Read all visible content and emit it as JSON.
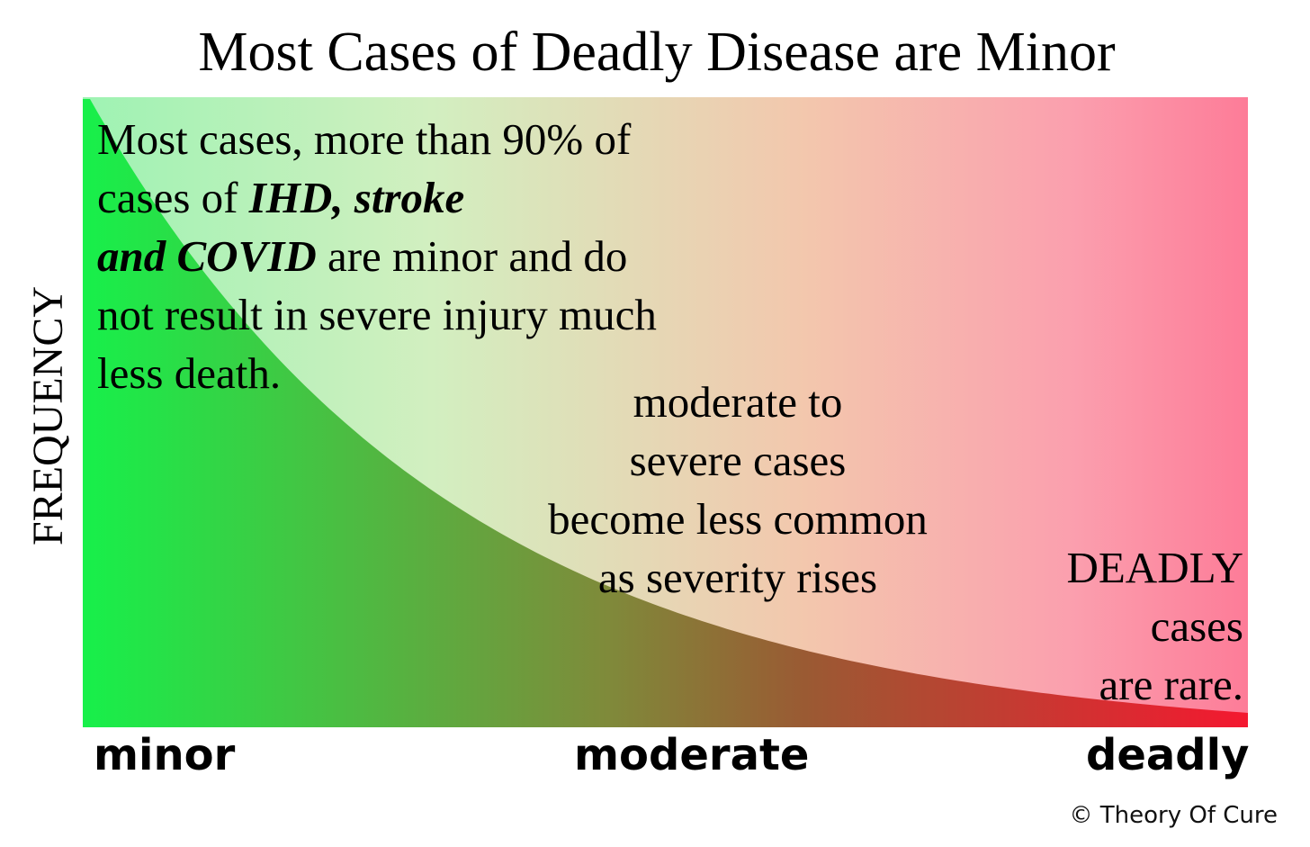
{
  "title": "Most Cases of Deadly Disease are Minor",
  "y_axis_label": "FREQUENCY",
  "x_axis_labels": [
    "minor",
    "moderate",
    "deadly"
  ],
  "annotations": {
    "minor": {
      "part1": "Most cases, more than 90% of cases of ",
      "emphasis1": "IHD, stroke",
      "emphasis2": "and COVID",
      "part2": " are minor and do not result in severe injury much less death."
    },
    "moderate": [
      "moderate to",
      "severe cases",
      "become less common",
      "as severity rises"
    ],
    "deadly": [
      "DEADLY",
      "cases",
      "are rare."
    ]
  },
  "copyright": "© Theory Of Cure",
  "colors": {
    "minor_green": "#17f04a",
    "mid_olive": "#7f8a3a",
    "brown": "#9a5a33",
    "deadly_red": "#f41830",
    "background_minor": "#9ef3b3",
    "background_deadly": "#fd7c98"
  }
}
